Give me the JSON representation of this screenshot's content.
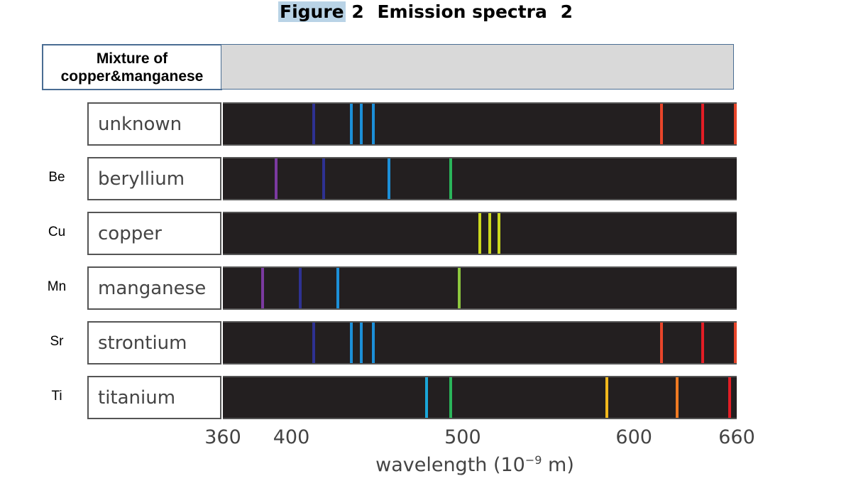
{
  "title": {
    "highlight": "Figure",
    "number": "2",
    "rest": "Emission spectra",
    "suffix": "2"
  },
  "mixture": {
    "label_line1": "Mixture of",
    "label_line2": "copper&manganese"
  },
  "axis": {
    "ticks": [
      360,
      400,
      500,
      600,
      660
    ],
    "label_main": "wavelength (10",
    "label_exp": "−9",
    "label_unit": " m)"
  },
  "spectra": [
    {
      "symbol": "",
      "name": "unknown",
      "lines": [
        {
          "w": 413,
          "c": "#2e3192"
        },
        {
          "w": 435,
          "c": "#1c8fd8"
        },
        {
          "w": 441,
          "c": "#1c8fd8"
        },
        {
          "w": 448,
          "c": "#1c8fd8"
        },
        {
          "w": 616,
          "c": "#e8452a"
        },
        {
          "w": 640,
          "c": "#e21d25"
        },
        {
          "w": 659,
          "c": "#e8452a"
        }
      ]
    },
    {
      "symbol": "Be",
      "name": "beryllium",
      "lines": [
        {
          "w": 391,
          "c": "#7b3aa0"
        },
        {
          "w": 419,
          "c": "#2e3192"
        },
        {
          "w": 457,
          "c": "#1c8fd8"
        },
        {
          "w": 493,
          "c": "#2ab45a"
        }
      ]
    },
    {
      "symbol": "Cu",
      "name": "copper",
      "lines": [
        {
          "w": 510,
          "c": "#cbd81e"
        },
        {
          "w": 516,
          "c": "#cbd81e"
        },
        {
          "w": 521,
          "c": "#cbd81e"
        }
      ]
    },
    {
      "symbol": "Mn",
      "name": "manganese",
      "lines": [
        {
          "w": 383,
          "c": "#7b3aa0"
        },
        {
          "w": 405,
          "c": "#2e3192"
        },
        {
          "w": 427,
          "c": "#1c8fd8"
        },
        {
          "w": 498,
          "c": "#8cc63e"
        }
      ]
    },
    {
      "symbol": "Sr",
      "name": "strontium",
      "lines": [
        {
          "w": 413,
          "c": "#2e3192"
        },
        {
          "w": 435,
          "c": "#1c8fd8"
        },
        {
          "w": 441,
          "c": "#1c8fd8"
        },
        {
          "w": 448,
          "c": "#1c8fd8"
        },
        {
          "w": 616,
          "c": "#e8452a"
        },
        {
          "w": 640,
          "c": "#e21d25"
        },
        {
          "w": 659,
          "c": "#e8452a"
        }
      ]
    },
    {
      "symbol": "Ti",
      "name": "titanium",
      "lines": [
        {
          "w": 479,
          "c": "#1aa6d8"
        },
        {
          "w": 493,
          "c": "#2ab45a"
        },
        {
          "w": 584,
          "c": "#f2b81c"
        },
        {
          "w": 625,
          "c": "#f07a22"
        },
        {
          "w": 656,
          "c": "#e21d25"
        }
      ]
    }
  ]
}
